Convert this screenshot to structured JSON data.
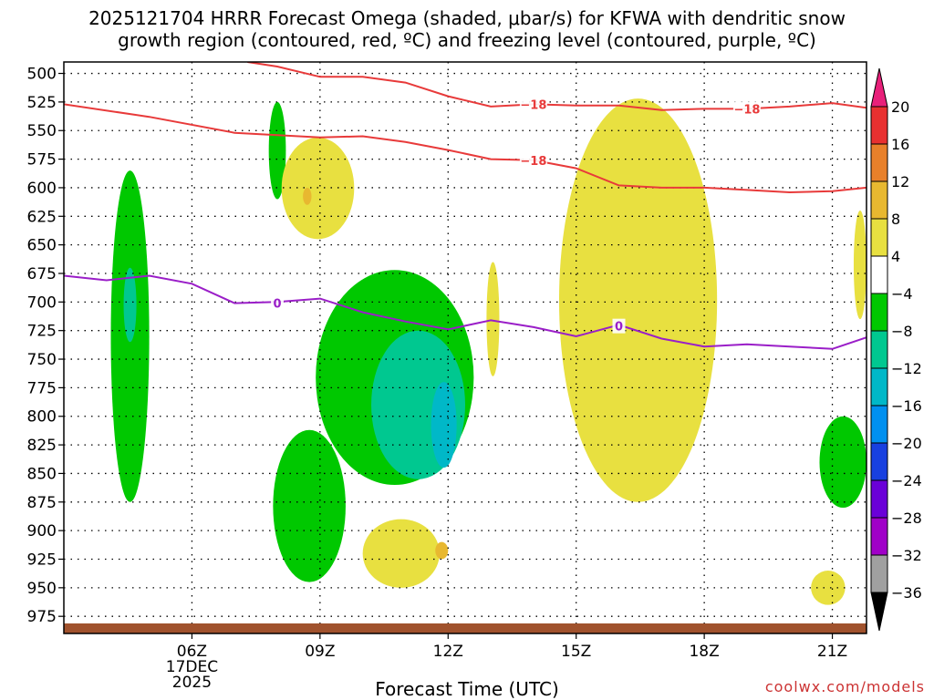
{
  "title_line1": "2025121704 HRRR Forecast Omega (shaded, μbar/s) for KFWA with dendritic snow",
  "title_line2": "growth region (contoured, red, ºC) and freezing level (contoured, purple, ºC)",
  "xlabel": "Forecast Time (UTC)",
  "credit": "coolwx.com/models",
  "colors": {
    "dgz_contour": "#e83a3a",
    "freezing_contour": "#9a1ec8",
    "ground": "#a0522d"
  },
  "chart_data": {
    "type": "contour",
    "y_axis": {
      "scale": "pressure (hPa), reversed",
      "ticks": [
        500,
        525,
        550,
        575,
        600,
        625,
        650,
        675,
        700,
        725,
        750,
        775,
        800,
        825,
        850,
        875,
        900,
        925,
        950,
        975
      ],
      "range": [
        490,
        990
      ]
    },
    "x_axis": {
      "range_hours": [
        3,
        21.8
      ],
      "ticks": [
        {
          "hour": 6,
          "label": "06Z",
          "sub1": "17DEC",
          "sub2": "2025"
        },
        {
          "hour": 9,
          "label": "09Z"
        },
        {
          "hour": 12,
          "label": "12Z"
        },
        {
          "hour": 15,
          "label": "15Z"
        },
        {
          "hour": 18,
          "label": "18Z"
        },
        {
          "hour": 21,
          "label": "21Z"
        }
      ]
    },
    "grid": true,
    "colorbar": {
      "placement": "right",
      "levels": [
        {
          "label": "20",
          "color": "#e8207a"
        },
        {
          "label": "16",
          "color": "#e83030"
        },
        {
          "label": "12",
          "color": "#e8802a"
        },
        {
          "label": "8",
          "color": "#e8b830"
        },
        {
          "label": "4",
          "color": "#e8e040"
        },
        {
          "label": "−4",
          "color": "#ffffff"
        },
        {
          "label": "−8",
          "color": "#00c800"
        },
        {
          "label": "−12",
          "color": "#00c890"
        },
        {
          "label": "−16",
          "color": "#00b8c8"
        },
        {
          "label": "−20",
          "color": "#0090f0"
        },
        {
          "label": "−24",
          "color": "#1840e0"
        },
        {
          "label": "−28",
          "color": "#6a00d8"
        },
        {
          "label": "−32",
          "color": "#a000c8"
        },
        {
          "label": "−36",
          "color": "#a0a0a0"
        }
      ]
    },
    "contours": [
      {
        "name": "−18",
        "label": "−18",
        "color": "dgz_contour",
        "points": [
          [
            3,
            527
          ],
          [
            5,
            538
          ],
          [
            7,
            552
          ],
          [
            9,
            556
          ],
          [
            10,
            555
          ],
          [
            11,
            560
          ],
          [
            12,
            567
          ],
          [
            13,
            575
          ],
          [
            14,
            576
          ],
          [
            15,
            583
          ],
          [
            16,
            598
          ],
          [
            17,
            600
          ],
          [
            18,
            600
          ],
          [
            19,
            602
          ],
          [
            20,
            604
          ],
          [
            21,
            603
          ],
          [
            21.8,
            600
          ]
        ],
        "labels_at": [
          [
            14,
            576
          ]
        ]
      },
      {
        "name": "−18 upper",
        "label": "−18",
        "color": "dgz_contour",
        "points": [
          [
            7.3,
            490
          ],
          [
            8,
            494
          ],
          [
            9,
            503
          ],
          [
            10,
            503
          ],
          [
            11,
            508
          ],
          [
            12,
            520
          ],
          [
            13,
            529
          ],
          [
            14,
            527
          ],
          [
            15,
            528
          ],
          [
            16,
            528
          ],
          [
            17,
            532
          ],
          [
            18,
            531
          ],
          [
            19,
            531
          ],
          [
            20,
            529
          ],
          [
            21,
            526
          ],
          [
            21.8,
            530
          ]
        ],
        "labels_at": [
          [
            14,
            527
          ],
          [
            19,
            531
          ]
        ]
      },
      {
        "name": "0",
        "label": "0",
        "color": "freezing_contour",
        "points": [
          [
            3,
            677
          ],
          [
            4,
            681
          ],
          [
            5,
            677
          ],
          [
            6,
            684
          ],
          [
            7,
            701
          ],
          [
            8,
            700
          ],
          [
            9,
            697
          ],
          [
            10,
            709
          ],
          [
            11,
            717
          ],
          [
            12,
            724
          ],
          [
            13,
            716
          ],
          [
            14,
            722
          ],
          [
            15,
            730
          ],
          [
            16,
            720
          ],
          [
            17,
            732
          ],
          [
            18,
            739
          ],
          [
            19,
            737
          ],
          [
            20,
            739
          ],
          [
            21,
            741
          ],
          [
            21.8,
            731
          ]
        ],
        "labels_at": [
          [
            8,
            701
          ],
          [
            16,
            721
          ]
        ]
      }
    ],
    "shaded_regions": [
      {
        "level": "−8",
        "hours": [
          4.1,
          5.0
        ],
        "pressure": [
          585,
          875
        ]
      },
      {
        "level": "−12",
        "hours": [
          4.4,
          4.7
        ],
        "pressure": [
          670,
          735
        ]
      },
      {
        "level": "−8",
        "hours": [
          7.8,
          8.2
        ],
        "pressure": [
          525,
          610
        ]
      },
      {
        "level": "4",
        "hours": [
          8.1,
          9.8
        ],
        "pressure": [
          556,
          645
        ]
      },
      {
        "level": "8",
        "hours": [
          8.6,
          8.8
        ],
        "pressure": [
          600,
          615
        ]
      },
      {
        "level": "−8",
        "hours": [
          8.9,
          12.6
        ],
        "pressure": [
          672,
          860
        ]
      },
      {
        "level": "−12",
        "hours": [
          10.2,
          12.4
        ],
        "pressure": [
          725,
          855
        ]
      },
      {
        "level": "−16",
        "hours": [
          11.6,
          12.2
        ],
        "pressure": [
          770,
          845
        ]
      },
      {
        "level": "−8",
        "hours": [
          7.9,
          9.6
        ],
        "pressure": [
          812,
          945
        ]
      },
      {
        "level": "4",
        "hours": [
          10.0,
          11.8
        ],
        "pressure": [
          890,
          950
        ]
      },
      {
        "level": "8",
        "hours": [
          11.7,
          12.0
        ],
        "pressure": [
          910,
          925
        ]
      },
      {
        "level": "4",
        "hours": [
          12.9,
          13.2
        ],
        "pressure": [
          665,
          765
        ]
      },
      {
        "level": "4",
        "hours": [
          14.6,
          18.3
        ],
        "pressure": [
          522,
          875
        ]
      },
      {
        "level": "−8",
        "hours": [
          20.7,
          21.8
        ],
        "pressure": [
          800,
          880
        ]
      },
      {
        "level": "4",
        "hours": [
          20.5,
          21.3
        ],
        "pressure": [
          935,
          965
        ]
      },
      {
        "level": "4",
        "hours": [
          21.5,
          21.8
        ],
        "pressure": [
          620,
          715
        ]
      }
    ]
  }
}
